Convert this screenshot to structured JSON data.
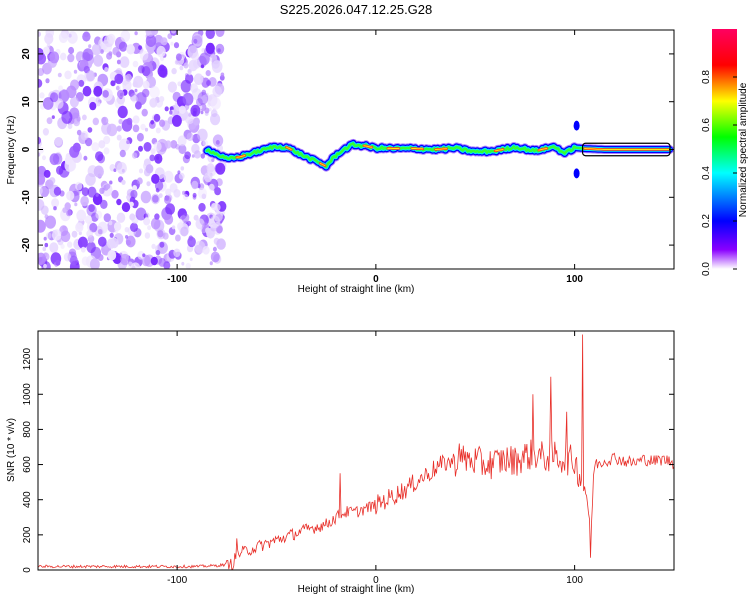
{
  "page": {
    "title": "S225.2026.047.12.25.G28"
  },
  "chart_data": [
    {
      "id": "spectrogram",
      "type": "heatmap",
      "title": "S225.2026.047.12.25.G28",
      "xlabel": "Height of straight line (km)",
      "ylabel": "Frequency (Hz)",
      "xlim": [
        -170,
        150
      ],
      "ylim": [
        -25,
        25
      ],
      "x_ticks": [
        -100,
        0,
        100
      ],
      "y_ticks": [
        -20,
        -10,
        0,
        10,
        20
      ],
      "colorbar": {
        "label": "Normalized spectral amplitude",
        "range": [
          0,
          1
        ],
        "ticks": [
          "0.0",
          "0.2",
          "0.4",
          "0.6",
          "0.8"
        ],
        "colors": [
          "#ffffff",
          "#8a00ff",
          "#0000ff",
          "#00ffff",
          "#00ff00",
          "#ffff00",
          "#ff0000",
          "#ff0060"
        ]
      },
      "noise_region_x": [
        -170,
        -82
      ],
      "signal_line": {
        "x": [
          -85,
          -80,
          -75,
          -68,
          -60,
          -52,
          -45,
          -38,
          -30,
          -25,
          -22,
          -18,
          -12,
          -6,
          0,
          10,
          20,
          30,
          40,
          50,
          60,
          70,
          80,
          90,
          95,
          100,
          105,
          115,
          125,
          135,
          148
        ],
        "freq": [
          0,
          -1,
          -2,
          -1.5,
          -0.5,
          0.5,
          0.5,
          -1,
          -2.5,
          -3.5,
          -2,
          -0.5,
          1,
          0.8,
          0.3,
          0.2,
          0.2,
          0,
          0.3,
          -0.5,
          -0.3,
          0.5,
          -0.3,
          0.6,
          -0.8,
          0.4,
          0.2,
          0,
          0,
          0,
          0
        ]
      }
    },
    {
      "id": "snr",
      "type": "line",
      "xlabel": "Height of straight line (km)",
      "ylabel": "SNR (10 * v/v)",
      "xlim": [
        -170,
        150
      ],
      "ylim": [
        0,
        1360
      ],
      "x_ticks": [
        -100,
        0,
        100
      ],
      "y_ticks": [
        0,
        200,
        400,
        600,
        800,
        1000,
        1200
      ],
      "series": [
        {
          "name": "SNR",
          "color": "#e8302a",
          "x": [
            -170,
            -120,
            -90,
            -80,
            -72,
            -70,
            -65,
            -55,
            -45,
            -35,
            -25,
            -20,
            -15,
            -10,
            -5,
            0,
            5,
            10,
            15,
            20,
            25,
            30,
            35,
            40,
            45,
            50,
            55,
            60,
            65,
            70,
            75,
            80,
            85,
            90,
            95,
            100,
            104,
            106,
            108,
            110,
            115,
            120,
            125,
            130,
            135,
            140,
            145,
            150
          ],
          "values": [
            20,
            20,
            20,
            25,
            35,
            90,
            110,
            150,
            190,
            230,
            260,
            300,
            330,
            330,
            350,
            370,
            400,
            430,
            460,
            500,
            540,
            580,
            610,
            620,
            630,
            620,
            600,
            610,
            630,
            620,
            650,
            660,
            640,
            650,
            630,
            620,
            500,
            450,
            200,
            600,
            620,
            640,
            620,
            610,
            630,
            620,
            630,
            610
          ]
        }
      ],
      "spikes": [
        {
          "x": -70,
          "value": 180
        },
        {
          "x": -18,
          "value": 550
        },
        {
          "x": 28,
          "value": 520
        },
        {
          "x": 42,
          "value": 720
        },
        {
          "x": 79,
          "value": 1000
        },
        {
          "x": 88,
          "value": 1100
        },
        {
          "x": 96,
          "value": 900
        },
        {
          "x": 104,
          "value": 1340
        },
        {
          "x": 108,
          "value": 70
        }
      ]
    }
  ]
}
